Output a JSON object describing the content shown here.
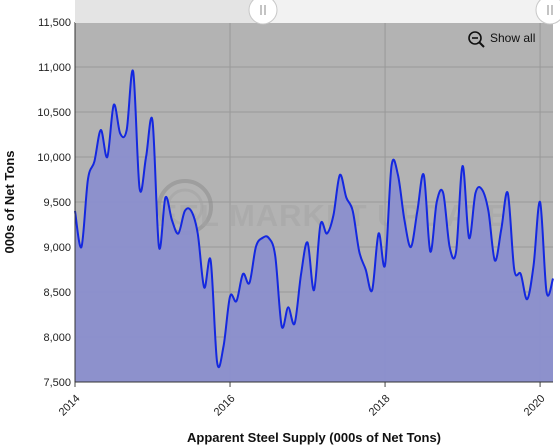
{
  "chart_data": {
    "type": "area",
    "title": "",
    "xlabel": "Apparent Steel Supply (000s of Net Tons)",
    "ylabel": "000s of Net Tons",
    "ylim": [
      7500,
      11500
    ],
    "xlim": [
      "2014-01",
      "2020-03"
    ],
    "y_ticks": [
      "7,500",
      "8,000",
      "8,500",
      "9,000",
      "9,500",
      "10,000",
      "10,500",
      "11,000",
      "11,500"
    ],
    "x_ticks": [
      "2014",
      "2016",
      "2018",
      "2020"
    ],
    "grid": true,
    "colors": {
      "plot_background": "#b3b3b3",
      "area_fill": "#8b8fce",
      "line": "#1428e0",
      "grid": "#999999"
    },
    "series": [
      {
        "x": [
          "2014-01",
          "2014-02",
          "2014-03",
          "2014-04",
          "2014-05",
          "2014-06",
          "2014-07",
          "2014-08",
          "2014-09",
          "2014-10",
          "2014-11",
          "2014-12",
          "2015-01",
          "2015-02",
          "2015-03",
          "2015-04",
          "2015-05",
          "2015-06",
          "2015-07",
          "2015-08",
          "2015-09",
          "2015-10",
          "2015-11",
          "2015-12",
          "2016-01",
          "2016-02",
          "2016-03",
          "2016-04",
          "2016-05",
          "2016-06",
          "2016-07",
          "2016-08",
          "2016-09",
          "2016-10",
          "2016-11",
          "2016-12",
          "2017-01",
          "2017-02",
          "2017-03",
          "2017-04",
          "2017-05",
          "2017-06",
          "2017-07",
          "2017-08",
          "2017-09",
          "2017-10",
          "2017-11",
          "2017-12",
          "2018-01",
          "2018-02",
          "2018-03",
          "2018-04",
          "2018-05",
          "2018-06",
          "2018-07",
          "2018-08",
          "2018-09",
          "2018-10",
          "2018-11",
          "2018-12",
          "2019-01",
          "2019-02",
          "2019-03",
          "2019-04",
          "2019-05",
          "2019-06",
          "2019-07",
          "2019-08",
          "2019-09",
          "2019-10",
          "2019-11",
          "2019-12",
          "2020-01",
          "2020-02",
          "2020-03"
        ],
        "values": [
          9400,
          9000,
          9750,
          9950,
          10300,
          10000,
          10580,
          10260,
          10300,
          10950,
          9650,
          10000,
          10400,
          9000,
          9550,
          9300,
          9150,
          9400,
          9400,
          9150,
          8550,
          8850,
          7720,
          7900,
          8450,
          8400,
          8700,
          8600,
          9000,
          9100,
          9100,
          8900,
          8120,
          8330,
          8150,
          8700,
          9050,
          8520,
          9250,
          9150,
          9350,
          9800,
          9550,
          9400,
          8950,
          8750,
          8520,
          9150,
          8800,
          9900,
          9800,
          9300,
          9000,
          9400,
          9800,
          8950,
          9500,
          9600,
          9000,
          8950,
          9900,
          9100,
          9600,
          9640,
          9400,
          8850,
          9200,
          9600,
          8750,
          8700,
          8420,
          8800,
          9500,
          8500,
          8650
        ]
      }
    ]
  },
  "controls": {
    "show_all_label": "Show all",
    "zoom_out_icon": "magnifier-minus-icon",
    "range_handle_icon": "range-handle-grip-icon"
  },
  "watermark": {
    "text": "STEEL MARKET UPDATE"
  }
}
